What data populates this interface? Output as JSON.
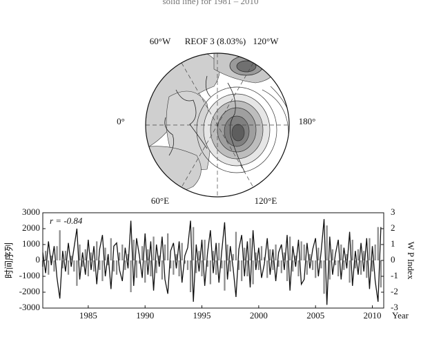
{
  "top_caption": "solid line) for 1981 – 2010",
  "map": {
    "title": "REOF 3 (8.03%)",
    "labels": [
      "60°W",
      "120°W",
      "0°",
      "180°",
      "60°E",
      "120°E"
    ]
  },
  "chart_data": {
    "type": "combo",
    "annotation": "r = -0.84",
    "ylabel": "时间序列",
    "y2label": "W P Index",
    "xlabel": "Year",
    "xlim": [
      1981,
      2011
    ],
    "xticks": [
      1985,
      1990,
      1995,
      2000,
      2005,
      2010
    ],
    "ylim": [
      -3000,
      3000
    ],
    "yticks": [
      -3000,
      -2000,
      -1000,
      0,
      1000,
      2000,
      3000
    ],
    "y2lim": [
      -3,
      3
    ],
    "y2ticks": [
      -3,
      -2,
      -1,
      0,
      1,
      2,
      3
    ],
    "x": [
      1981,
      1981.25,
      1981.5,
      1981.75,
      1982,
      1982.25,
      1982.5,
      1982.75,
      1983,
      1983.25,
      1983.5,
      1983.75,
      1984,
      1984.25,
      1984.5,
      1984.75,
      1985,
      1985.25,
      1985.5,
      1985.75,
      1986,
      1986.25,
      1986.5,
      1986.75,
      1987,
      1987.25,
      1987.5,
      1987.75,
      1988,
      1988.25,
      1988.5,
      1988.75,
      1989,
      1989.25,
      1989.5,
      1989.75,
      1990,
      1990.25,
      1990.5,
      1990.75,
      1991,
      1991.25,
      1991.5,
      1991.75,
      1992,
      1992.25,
      1992.5,
      1992.75,
      1993,
      1993.25,
      1993.5,
      1993.75,
      1994,
      1994.25,
      1994.5,
      1994.75,
      1995,
      1995.25,
      1995.5,
      1995.75,
      1996,
      1996.25,
      1996.5,
      1996.75,
      1997,
      1997.25,
      1997.5,
      1997.75,
      1998,
      1998.25,
      1998.5,
      1998.75,
      1999,
      1999.25,
      1999.5,
      1999.75,
      2000,
      2000.25,
      2000.5,
      2000.75,
      2001,
      2001.25,
      2001.5,
      2001.75,
      2002,
      2002.25,
      2002.5,
      2002.75,
      2003,
      2003.25,
      2003.5,
      2003.75,
      2004,
      2004.25,
      2004.5,
      2004.75,
      2005,
      2005.25,
      2005.5,
      2005.75,
      2006,
      2006.25,
      2006.5,
      2006.75,
      2007,
      2007.25,
      2007.5,
      2007.75,
      2008,
      2008.25,
      2008.5,
      2008.75,
      2009,
      2009.25,
      2009.5,
      2009.75,
      2010,
      2010.25,
      2010.5,
      2010.75
    ],
    "series": [
      {
        "type": "bar",
        "axis": "y",
        "color": "#8c8c8c",
        "values": [
          -400,
          600,
          -900,
          300,
          -700,
          900,
          1900,
          -500,
          600,
          -900,
          300,
          -700,
          -1600,
          1000,
          -400,
          700,
          -1000,
          500,
          -700,
          1200,
          -600,
          -1300,
          800,
          -300,
          1400,
          -700,
          -900,
          500,
          1000,
          -600,
          400,
          -2000,
          1300,
          -1100,
          -200,
          900,
          -1400,
          700,
          -1000,
          1500,
          -800,
          300,
          -1200,
          1000,
          1700,
          -500,
          -900,
          400,
          -1000,
          1100,
          -200,
          -600,
          -2000,
          2100,
          -800,
          600,
          -1000,
          1300,
          -400,
          -1500,
          600,
          -900,
          1100,
          -500,
          -1900,
          1000,
          -700,
          400,
          1800,
          -600,
          -1300,
          800,
          -1000,
          1400,
          -1500,
          500,
          -600,
          900,
          200,
          -1100,
          700,
          -600,
          1000,
          -400,
          -800,
          500,
          -1300,
          1500,
          -700,
          300,
          -1000,
          1200,
          1000,
          -900,
          400,
          -600,
          -1100,
          800,
          -500,
          -2100,
          2200,
          -1200,
          700,
          -300,
          -1000,
          1000,
          -600,
          400,
          -1400,
          1300,
          -500,
          700,
          -900,
          600,
          -1100,
          1400,
          -700,
          1000,
          2100,
          -1700
        ]
      },
      {
        "type": "line",
        "axis": "y2",
        "color": "#111111",
        "values": [
          0.5,
          -0.8,
          1.2,
          -0.3,
          0.9,
          -1.1,
          -2.4,
          0.6,
          -0.7,
          1.1,
          -0.4,
          0.8,
          2.0,
          -1.2,
          0.5,
          -0.9,
          1.3,
          -0.6,
          0.9,
          -1.5,
          0.7,
          1.6,
          -1.0,
          0.4,
          -1.8,
          0.9,
          1.1,
          -0.6,
          -1.3,
          0.8,
          -0.5,
          2.5,
          -1.6,
          1.4,
          0.3,
          -1.1,
          1.7,
          -0.9,
          1.2,
          -1.9,
          1.0,
          -0.4,
          1.5,
          -1.2,
          -2.1,
          0.6,
          1.1,
          -0.5,
          1.2,
          -1.4,
          0.3,
          0.8,
          2.5,
          -2.6,
          1.0,
          -0.7,
          1.3,
          -1.6,
          0.5,
          1.9,
          -0.8,
          1.1,
          -1.4,
          0.6,
          2.4,
          -1.2,
          0.9,
          -0.5,
          -2.3,
          0.7,
          1.6,
          -1.0,
          1.2,
          -1.7,
          1.9,
          -0.6,
          0.8,
          -1.1,
          -0.2,
          1.4,
          -0.9,
          0.7,
          -1.3,
          0.5,
          1.0,
          -0.6,
          1.6,
          -1.9,
          0.9,
          -0.4,
          1.3,
          -1.5,
          -1.2,
          1.1,
          -0.5,
          0.7,
          1.4,
          -1.0,
          0.6,
          2.6,
          -2.8,
          1.5,
          -0.9,
          0.4,
          1.3,
          -1.2,
          0.8,
          -0.5,
          1.8,
          -1.6,
          0.6,
          -0.9,
          1.1,
          -0.7,
          1.4,
          -1.8,
          0.9,
          -1.3,
          -2.6,
          2.1
        ]
      }
    ]
  }
}
